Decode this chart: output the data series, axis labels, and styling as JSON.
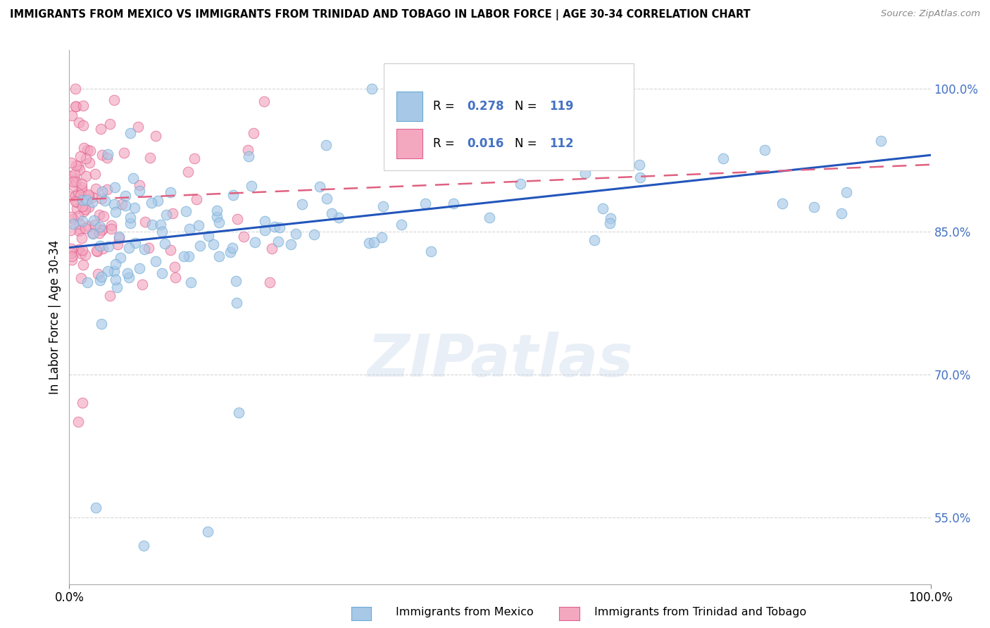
{
  "title": "IMMIGRANTS FROM MEXICO VS IMMIGRANTS FROM TRINIDAD AND TOBAGO IN LABOR FORCE | AGE 30-34 CORRELATION CHART",
  "source": "Source: ZipAtlas.com",
  "ylabel": "In Labor Force | Age 30-34",
  "xlim": [
    0.0,
    1.0
  ],
  "ylim": [
    0.48,
    1.04
  ],
  "yticks": [
    0.55,
    0.7,
    0.85,
    1.0
  ],
  "ytick_labels": [
    "55.0%",
    "70.0%",
    "85.0%",
    "100.0%"
  ],
  "xtick_labels": [
    "0.0%",
    "100.0%"
  ],
  "watermark": "ZIPatlas",
  "legend_R1": "0.278",
  "legend_N1": "119",
  "legend_R2": "0.016",
  "legend_N2": "112",
  "color_mexico": "#a8c8e8",
  "color_mexico_edge": "#6aaad4",
  "color_tt": "#f4a8c0",
  "color_tt_edge": "#e06090",
  "color_blue_text": "#4472c4",
  "trend_mexico_color": "#2255bb",
  "trend_tt_color": "#e06080",
  "bottom_label1": "Immigrants from Mexico",
  "bottom_label2": "Immigrants from Trinidad and Tobago"
}
